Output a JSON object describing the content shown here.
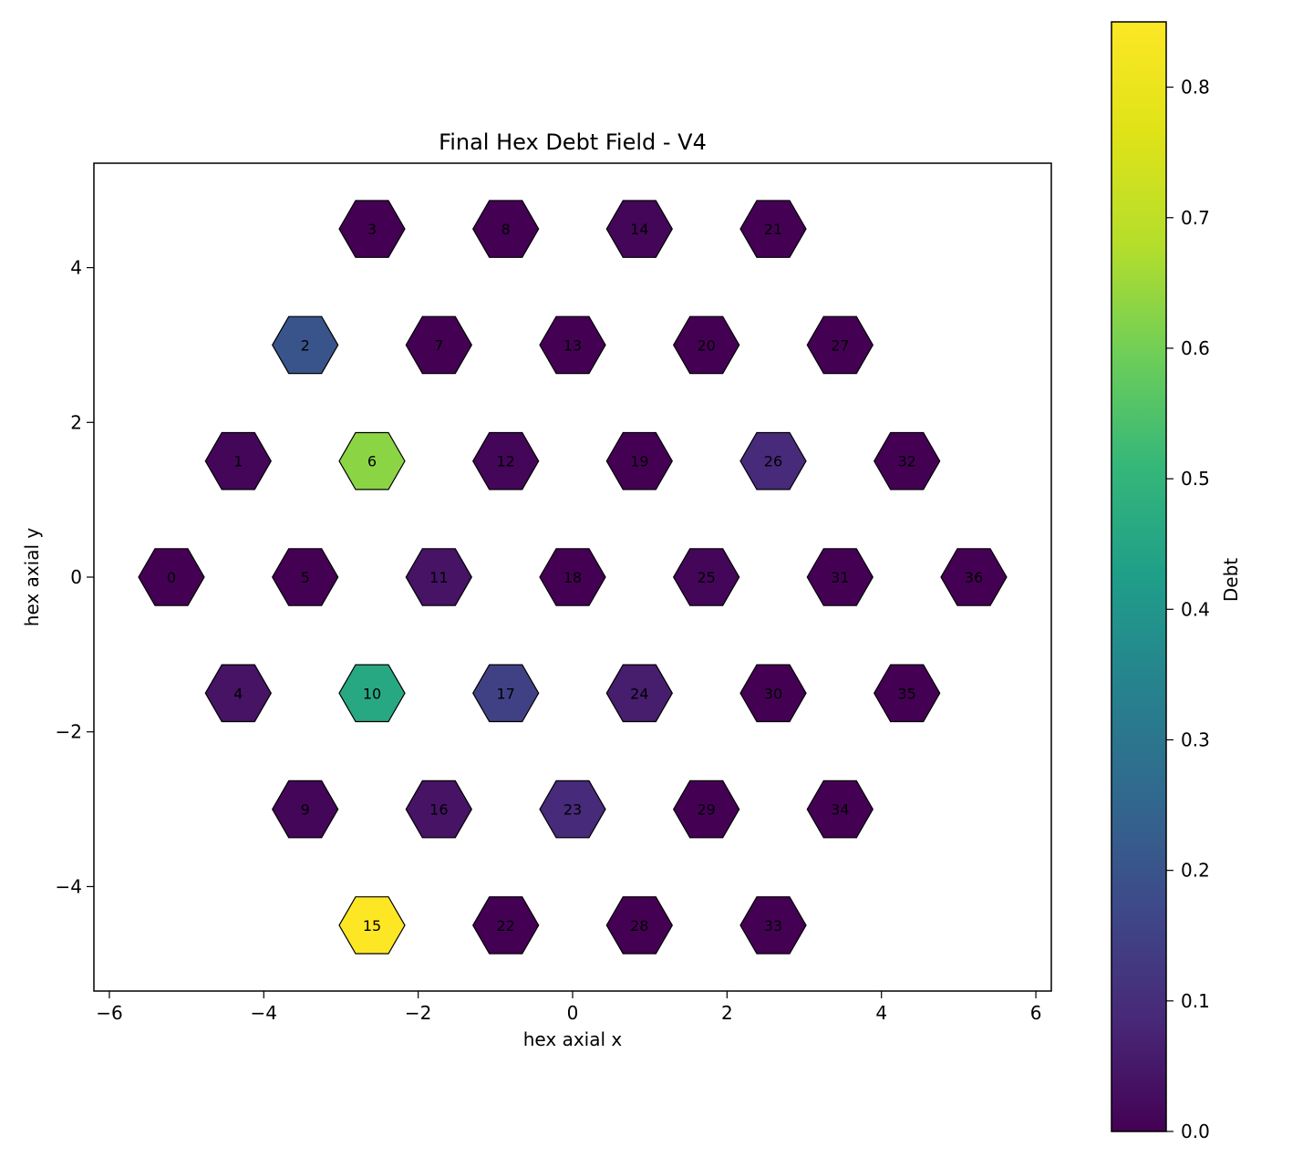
{
  "chart_data": {
    "type": "heatmap",
    "title": "Final Hex Debt Field - V4",
    "xlabel": "hex axial x",
    "ylabel": "hex axial y",
    "xlim": [
      -6.2,
      6.2
    ],
    "ylim": [
      -5.35,
      5.35
    ],
    "x_ticks": [
      -6,
      -4,
      -2,
      0,
      2,
      4,
      6
    ],
    "y_ticks": [
      -4,
      -2,
      0,
      2,
      4
    ],
    "colorbar": {
      "label": "Debt",
      "range": [
        0.0,
        0.85
      ],
      "ticks": [
        0.0,
        0.1,
        0.2,
        0.3,
        0.4,
        0.5,
        0.6,
        0.7,
        0.8
      ],
      "colormap": "viridis"
    },
    "cells": [
      {
        "id": "0",
        "x": -5.196,
        "y": 0.0,
        "value": 0.0
      },
      {
        "id": "1",
        "x": -4.33,
        "y": 1.5,
        "value": 0.01
      },
      {
        "id": "2",
        "x": -3.464,
        "y": 3.0,
        "value": 0.2
      },
      {
        "id": "3",
        "x": -2.598,
        "y": 4.5,
        "value": 0.0
      },
      {
        "id": "4",
        "x": -4.33,
        "y": -1.5,
        "value": 0.04
      },
      {
        "id": "5",
        "x": -3.464,
        "y": 0.0,
        "value": 0.0
      },
      {
        "id": "6",
        "x": -2.598,
        "y": 1.5,
        "value": 0.63
      },
      {
        "id": "7",
        "x": -1.732,
        "y": 3.0,
        "value": 0.0
      },
      {
        "id": "8",
        "x": -0.866,
        "y": 4.5,
        "value": 0.0
      },
      {
        "id": "9",
        "x": -3.464,
        "y": -3.0,
        "value": 0.01
      },
      {
        "id": "10",
        "x": -2.598,
        "y": -1.5,
        "value": 0.46
      },
      {
        "id": "11",
        "x": -1.732,
        "y": 0.0,
        "value": 0.04
      },
      {
        "id": "12",
        "x": -0.866,
        "y": 1.5,
        "value": 0.01
      },
      {
        "id": "13",
        "x": 0.0,
        "y": 3.0,
        "value": 0.0
      },
      {
        "id": "14",
        "x": 0.866,
        "y": 4.5,
        "value": 0.01
      },
      {
        "id": "15",
        "x": -2.598,
        "y": -4.5,
        "value": 0.85
      },
      {
        "id": "16",
        "x": -1.732,
        "y": -3.0,
        "value": 0.04
      },
      {
        "id": "17",
        "x": -0.866,
        "y": -1.5,
        "value": 0.15
      },
      {
        "id": "18",
        "x": 0.0,
        "y": 0.0,
        "value": 0.0
      },
      {
        "id": "19",
        "x": 0.866,
        "y": 1.5,
        "value": 0.0
      },
      {
        "id": "20",
        "x": 1.732,
        "y": 3.0,
        "value": 0.0
      },
      {
        "id": "21",
        "x": 2.598,
        "y": 4.5,
        "value": 0.0
      },
      {
        "id": "22",
        "x": -0.866,
        "y": -4.5,
        "value": 0.0
      },
      {
        "id": "23",
        "x": 0.0,
        "y": -3.0,
        "value": 0.09
      },
      {
        "id": "24",
        "x": 0.866,
        "y": -1.5,
        "value": 0.06
      },
      {
        "id": "25",
        "x": 1.732,
        "y": 0.0,
        "value": 0.01
      },
      {
        "id": "26",
        "x": 2.598,
        "y": 1.5,
        "value": 0.09
      },
      {
        "id": "27",
        "x": 3.464,
        "y": 3.0,
        "value": 0.0
      },
      {
        "id": "28",
        "x": 0.866,
        "y": -4.5,
        "value": 0.0
      },
      {
        "id": "29",
        "x": 1.732,
        "y": -3.0,
        "value": 0.0
      },
      {
        "id": "30",
        "x": 2.598,
        "y": -1.5,
        "value": 0.0
      },
      {
        "id": "31",
        "x": 3.464,
        "y": 0.0,
        "value": 0.0
      },
      {
        "id": "32",
        "x": 4.33,
        "y": 1.5,
        "value": 0.0
      },
      {
        "id": "33",
        "x": 2.598,
        "y": -4.5,
        "value": 0.0
      },
      {
        "id": "34",
        "x": 3.464,
        "y": -3.0,
        "value": 0.0
      },
      {
        "id": "35",
        "x": 4.33,
        "y": -1.5,
        "value": 0.0
      },
      {
        "id": "36",
        "x": 5.196,
        "y": 0.0,
        "value": 0.0
      }
    ]
  }
}
